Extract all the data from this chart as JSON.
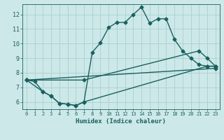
{
  "bg_color": "#cde8e8",
  "grid_color": "#aacfcf",
  "line_color": "#1a6060",
  "xlabel": "Humidex (Indice chaleur)",
  "xlim": [
    -0.5,
    23.5
  ],
  "ylim": [
    5.5,
    12.7
  ],
  "yticks": [
    6,
    7,
    8,
    9,
    10,
    11,
    12
  ],
  "xticks": [
    0,
    1,
    2,
    3,
    4,
    5,
    6,
    7,
    8,
    9,
    10,
    11,
    12,
    13,
    14,
    15,
    16,
    17,
    18,
    19,
    20,
    21,
    22,
    23
  ],
  "line1_x": [
    0,
    1,
    2,
    3,
    4,
    5,
    6,
    7,
    8,
    9,
    10,
    11,
    12,
    13,
    14,
    15,
    16,
    17,
    18,
    19,
    20,
    21,
    22,
    23
  ],
  "line1_y": [
    7.5,
    7.4,
    6.7,
    6.4,
    5.9,
    5.85,
    5.75,
    6.0,
    9.4,
    10.05,
    11.1,
    11.45,
    11.45,
    12.0,
    12.5,
    11.4,
    11.7,
    11.7,
    10.3,
    9.5,
    9.0,
    8.55,
    8.45,
    8.45
  ],
  "line2_x": [
    0,
    2,
    3,
    4,
    5,
    6,
    7,
    22,
    23
  ],
  "line2_y": [
    7.5,
    6.7,
    6.4,
    5.9,
    5.85,
    5.75,
    6.0,
    8.45,
    8.45
  ],
  "line3_x": [
    0,
    7,
    21,
    22,
    23
  ],
  "line3_y": [
    7.5,
    7.5,
    9.5,
    9.0,
    8.45
  ],
  "line4_x": [
    0,
    23
  ],
  "line4_y": [
    7.5,
    8.3
  ],
  "marker": "D",
  "markersize": 2.5,
  "linewidth": 1.0
}
